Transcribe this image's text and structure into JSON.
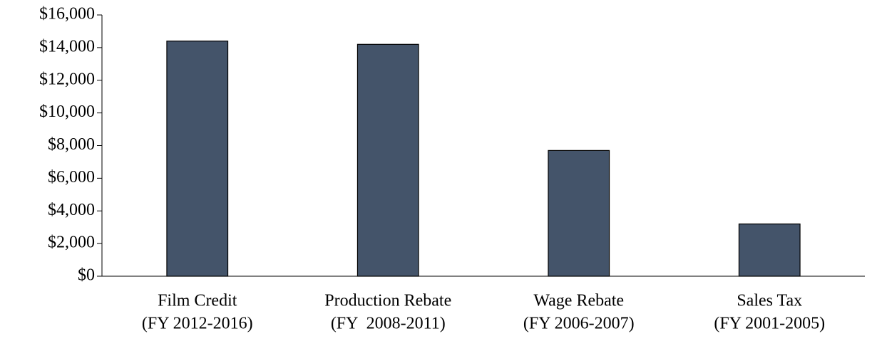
{
  "chart_data": {
    "type": "bar",
    "categories": [
      [
        "Film Credit",
        "(FY 2012-2016)"
      ],
      [
        "Production Rebate",
        "(FY  2008-2011)"
      ],
      [
        "Wage Rebate",
        "(FY 2006-2007)"
      ],
      [
        "Sales Tax",
        "(FY 2001-2005)"
      ]
    ],
    "values": [
      14400,
      14200,
      7700,
      3200
    ],
    "color": "#44546a",
    "ylim": [
      0,
      16000
    ],
    "yticks": [
      {
        "value": 0,
        "label": "$0"
      },
      {
        "value": 2000,
        "label": "$2,000"
      },
      {
        "value": 4000,
        "label": "$4,000"
      },
      {
        "value": 6000,
        "label": "$6,000"
      },
      {
        "value": 8000,
        "label": "$8,000"
      },
      {
        "value": 10000,
        "label": "$10,000"
      },
      {
        "value": 12000,
        "label": "$12,000"
      },
      {
        "value": 14000,
        "label": "$14,000"
      },
      {
        "value": 16000,
        "label": "$16,000"
      }
    ],
    "grid": false
  }
}
